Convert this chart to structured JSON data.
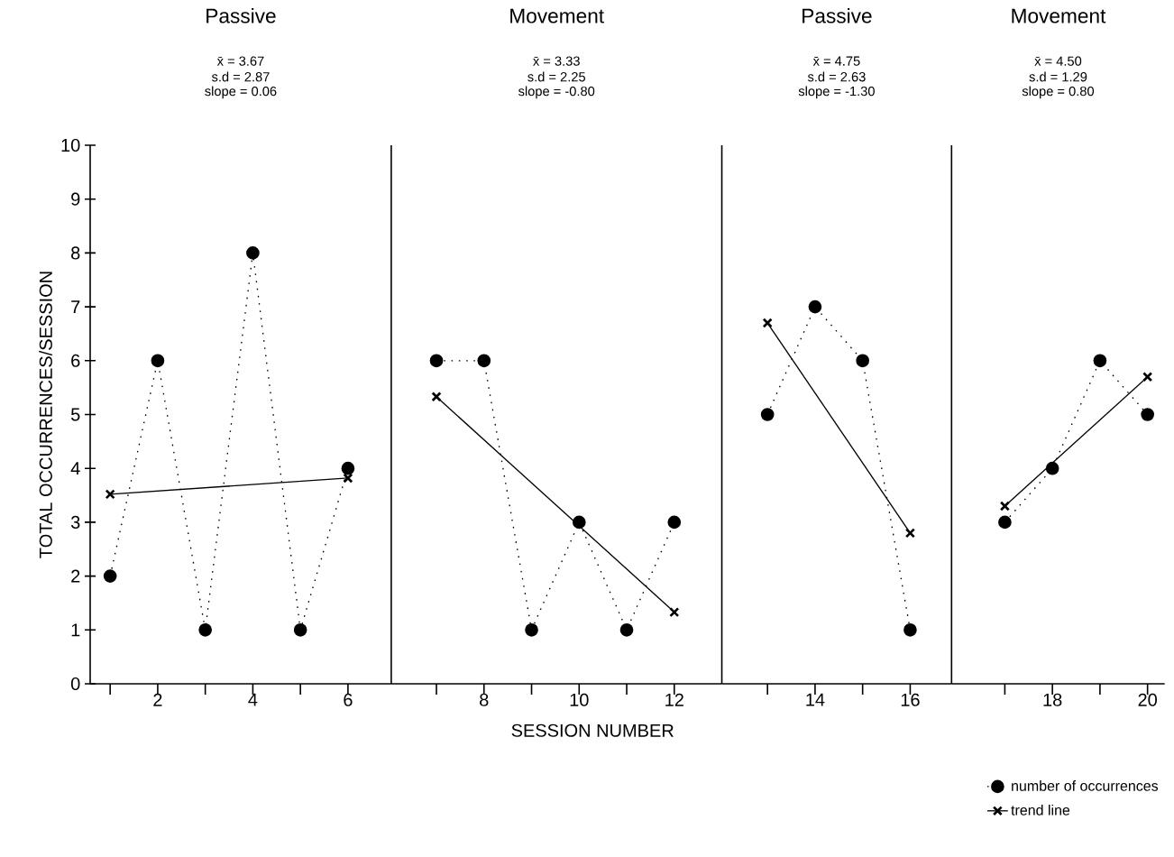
{
  "chart_data": [
    {
      "type": "line",
      "title": "Passive",
      "annotations": [
        "x̄ = 3.67",
        "s.d = 2.87",
        "slope = 0.06"
      ],
      "ylabel": "TOTAL OCCURRENCES/SESSION",
      "x": [
        1,
        2,
        3,
        4,
        5,
        6
      ],
      "series": [
        {
          "color": "#000000",
          "values": [
            2,
            6,
            1,
            8,
            1,
            4
          ],
          "marker": "circle",
          "line_style": "dotted"
        },
        {
          "type": "line",
          "x": [
            1,
            6
          ],
          "values": [
            3.52,
            3.82
          ],
          "color": "#000000",
          "marker": "cross",
          "line_style": "solid"
        }
      ],
      "xlim": [
        0.58,
        6.91
      ],
      "xticks": [
        {
          "value": 1,
          "label": null
        },
        2,
        {
          "value": 3,
          "label": null
        },
        4,
        {
          "value": 5,
          "label": null
        },
        6
      ],
      "ylim": [
        0,
        10
      ],
      "yticks": [
        0,
        1,
        2,
        3,
        4,
        5,
        6,
        7,
        8,
        9,
        10
      ]
    },
    {
      "type": "line",
      "title": "Movement",
      "annotations": [
        "x̄ = 3.33",
        "s.d = 2.25",
        "slope = -0.80"
      ],
      "xlabel": "SESSION NUMBER",
      "x": [
        7,
        8,
        9,
        10,
        11,
        12
      ],
      "series": [
        {
          "color": "#000000",
          "values": [
            6,
            6,
            1,
            3,
            1,
            3
          ],
          "marker": "circle",
          "line_style": "dotted"
        },
        {
          "type": "line",
          "x": [
            7,
            12
          ],
          "values": [
            5.33,
            1.33
          ],
          "color": "#000000",
          "marker": "cross",
          "line_style": "solid"
        }
      ],
      "xlim": [
        6.05,
        13.0
      ],
      "xticks": [
        {
          "value": 7,
          "label": null
        },
        8,
        {
          "value": 9,
          "label": null
        },
        10,
        {
          "value": 11,
          "label": null
        },
        12
      ],
      "ylim": [
        0,
        10
      ],
      "tick_labels": "x"
    },
    {
      "type": "line",
      "title": "Passive",
      "annotations": [
        "x̄ = 4.75",
        "s.d = 2.63",
        "slope = -1.30"
      ],
      "x": [
        13,
        14,
        15,
        16
      ],
      "series": [
        {
          "color": "#000000",
          "values": [
            5,
            7,
            6,
            1
          ],
          "marker": "circle",
          "line_style": "dotted"
        },
        {
          "type": "line",
          "x": [
            13,
            16
          ],
          "values": [
            6.7,
            2.8
          ],
          "color": "#000000",
          "marker": "cross",
          "line_style": "solid"
        }
      ],
      "xlim": [
        12.04,
        16.87
      ],
      "xticks": [
        {
          "value": 13,
          "label": null
        },
        14,
        {
          "value": 15,
          "label": null
        },
        16
      ],
      "ylim": [
        0,
        10
      ],
      "tick_labels": "x"
    },
    {
      "type": "line",
      "title": "Movement",
      "annotations": [
        "x̄ = 4.50",
        "s.d = 1.29",
        "slope = 0.80"
      ],
      "x": [
        17,
        18,
        19,
        20
      ],
      "legend": "bottom right",
      "series": [
        {
          "name": "number of occurrences",
          "color": "#000000",
          "values": [
            3,
            4,
            6,
            5
          ],
          "marker": "circle",
          "line_style": "dotted"
        },
        {
          "name": "trend line",
          "type": "line",
          "x": [
            17,
            20
          ],
          "values": [
            3.3,
            5.7
          ],
          "color": "#000000",
          "marker": "cross",
          "line_style": "solid"
        }
      ],
      "xlim": [
        15.88,
        20.36
      ],
      "xticks": [
        {
          "value": 17,
          "label": null
        },
        18,
        {
          "value": 19,
          "label": null
        },
        20
      ],
      "ylim": [
        0,
        10
      ],
      "tick_labels": "x"
    }
  ]
}
